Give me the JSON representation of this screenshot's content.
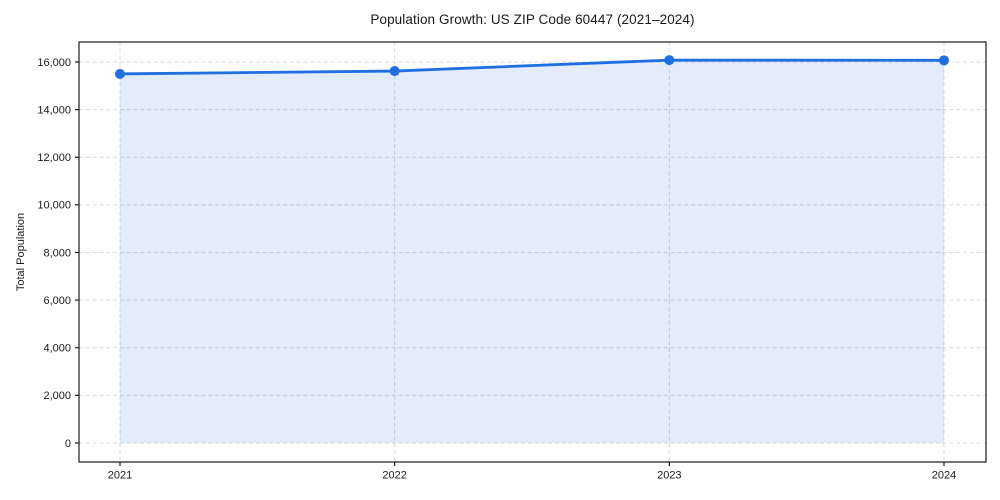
{
  "figure": {
    "title": "Population Growth: US ZIP Code 60447 (2021–2024)",
    "ylabel": "Total Population"
  },
  "chart_data": {
    "type": "line",
    "title": "Population Growth: US ZIP Code 60447 (2021–2024)",
    "xlabel": "",
    "ylabel": "Total Population",
    "x": [
      2021,
      2022,
      2023,
      2024
    ],
    "x_tick_labels": [
      "2021",
      "2022",
      "2023",
      "2024"
    ],
    "series": [
      {
        "name": "Total Population",
        "values": [
          15500,
          15620,
          16080,
          16070
        ]
      }
    ],
    "yticks": [
      0,
      2000,
      4000,
      6000,
      8000,
      10000,
      12000,
      14000,
      16000
    ],
    "ytick_labels": [
      "0",
      "2,000",
      "4,000",
      "6,000",
      "8,000",
      "10,000",
      "12,000",
      "14,000",
      "16,000"
    ],
    "ylim": [
      -800,
      16840
    ],
    "grid": true,
    "grid_style": "dashed",
    "legend_position": "none",
    "line_color": "#1f6fe0",
    "fill_opacity": 0.13,
    "fill_baseline": 0,
    "marker": "circle",
    "grid_color": "#d9d9d9",
    "spine_color": "#1a1a1a",
    "text_color": "#1a1a1a",
    "background": "#ffffff"
  }
}
